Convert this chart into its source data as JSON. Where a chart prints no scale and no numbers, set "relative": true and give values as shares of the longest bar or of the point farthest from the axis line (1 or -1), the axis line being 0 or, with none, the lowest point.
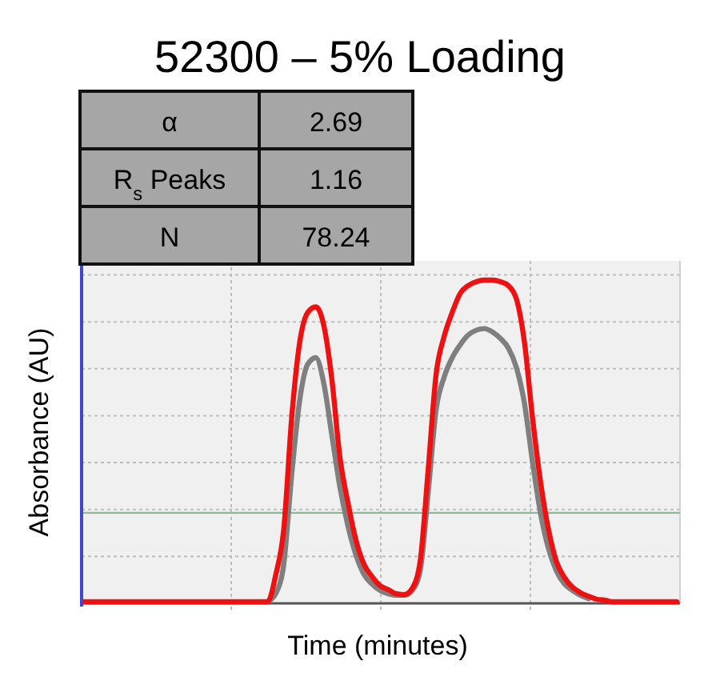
{
  "chart_data": {
    "type": "line",
    "title": "52300 – 5% Loading",
    "xlabel": "Time (minutes)",
    "ylabel": "Absorbance (AU)",
    "relative": true,
    "grid": true,
    "line_style": "solid",
    "annotations": [
      "α",
      "2.69",
      "R$_{s}$ Peaks",
      "1.16",
      "N",
      "78.24"
    ],
    "ref_lines": [
      {
        "axis": "y",
        "value": 0.28,
        "color": "#8fb89a"
      }
    ],
    "categories": [
      null,
      null,
      null,
      null,
      null,
      null,
      null,
      null,
      null,
      null,
      null,
      null,
      null,
      null,
      null,
      null,
      null,
      null,
      null,
      null,
      null,
      null,
      null,
      null,
      null,
      null,
      null,
      null,
      null,
      null,
      null,
      null,
      null,
      null,
      null,
      null,
      null,
      null,
      null,
      null,
      null,
      null,
      null,
      null,
      null,
      null,
      null,
      null,
      null,
      null,
      null,
      null,
      null,
      null,
      null,
      null,
      null,
      null,
      null,
      null,
      null,
      null,
      null,
      null,
      null,
      null,
      null,
      null,
      null,
      null,
      null,
      null,
      null,
      null,
      null
    ],
    "series": [
      {
        "color": "#7f7f7f",
        "values": [
          null,
          null,
          null,
          null,
          null,
          null,
          null,
          null,
          null,
          null,
          null,
          null,
          null,
          null,
          null,
          null,
          null,
          null,
          null,
          null,
          null,
          null,
          null,
          0.005,
          0.03,
          0.12,
          0.4,
          0.63,
          0.74,
          0.76,
          0.68,
          0.52,
          0.36,
          0.24,
          0.15,
          0.09,
          0.06,
          0.04,
          0.03,
          0.025,
          0.025,
          0.04,
          0.1,
          0.34,
          0.6,
          0.7,
          0.76,
          0.8,
          0.83,
          0.845,
          0.85,
          0.84,
          0.82,
          0.79,
          0.73,
          0.62,
          0.44,
          0.28,
          0.17,
          0.1,
          0.06,
          0.04,
          0.025,
          0.015,
          null,
          null,
          null,
          null,
          null,
          null,
          null,
          null,
          null,
          null,
          null
        ]
      },
      {
        "color": "#ee1111",
        "values": [
          0.005,
          0.005,
          0.005,
          0.005,
          0.005,
          0.005,
          0.005,
          0.005,
          0.005,
          0.005,
          0.005,
          0.005,
          0.005,
          0.005,
          0.005,
          0.005,
          0.005,
          0.005,
          0.005,
          0.005,
          0.005,
          0.005,
          0.005,
          0.005,
          0.088,
          0.229,
          0.577,
          0.809,
          0.9,
          0.917,
          0.859,
          0.693,
          0.453,
          0.312,
          0.196,
          0.121,
          0.083,
          0.055,
          0.043,
          0.03,
          0.027,
          0.046,
          0.129,
          0.411,
          0.71,
          0.826,
          0.9,
          0.959,
          0.983,
          0.995,
          1.0,
          1.0,
          0.995,
          0.983,
          0.942,
          0.809,
          0.577,
          0.378,
          0.229,
          0.129,
          0.08,
          0.05,
          0.033,
          0.022,
          0.013,
          0.01,
          0.005,
          0.005,
          0.005,
          0.005,
          0.005,
          0.005,
          0.005,
          0.005,
          0.005
        ]
      }
    ]
  }
}
